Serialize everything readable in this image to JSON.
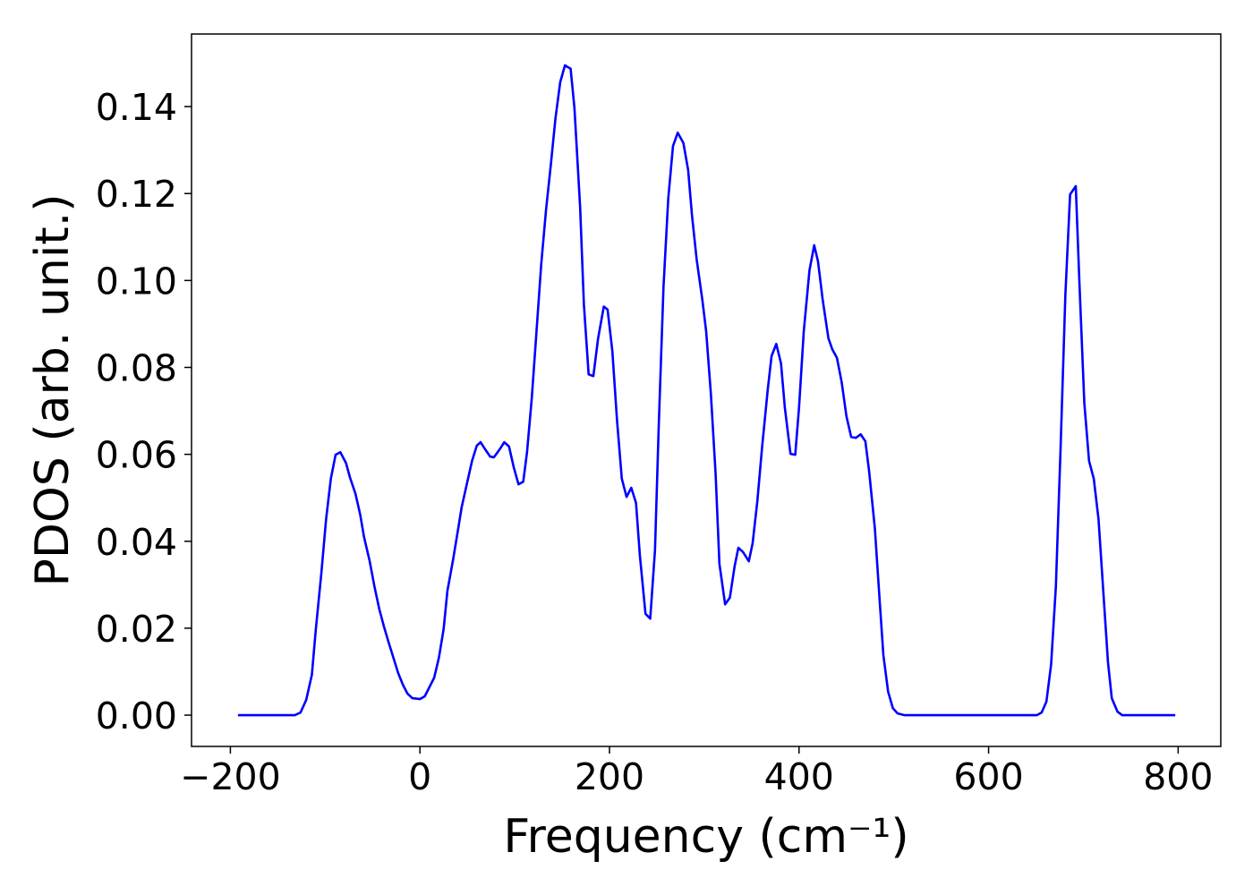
{
  "chart_data": {
    "type": "line",
    "xlabel": "Frequency (cm⁻¹)",
    "ylabel": "PDOS (arb. unit.)",
    "x": [
      -192,
      -132,
      -126,
      -120,
      -114,
      -110,
      -104,
      -99,
      -94,
      -89,
      -84,
      -78,
      -74,
      -68,
      -63,
      -59,
      -53,
      -48,
      -43,
      -38,
      -33,
      -28,
      -23,
      -18,
      -13,
      -8,
      0,
      5,
      9,
      15,
      20,
      25,
      29,
      35,
      40,
      44,
      49,
      55,
      60,
      64,
      69,
      74,
      78,
      84,
      89,
      94,
      99,
      104,
      109,
      113,
      118,
      123,
      128,
      133,
      138,
      143,
      148,
      153,
      159,
      163,
      169,
      173,
      178,
      183,
      188,
      194,
      198,
      203,
      208,
      213,
      218,
      223,
      228,
      232,
      238,
      243,
      248,
      252,
      257,
      262,
      267,
      272,
      278,
      283,
      287,
      292,
      298,
      302,
      307,
      312,
      316,
      322,
      327,
      332,
      336,
      341,
      347,
      351,
      356,
      361,
      367,
      371,
      376,
      381,
      385,
      391,
      396,
      400,
      405,
      411,
      416,
      420,
      425,
      431,
      435,
      440,
      445,
      450,
      455,
      460,
      465,
      470,
      474,
      480,
      485,
      489,
      494,
      499,
      504,
      511,
      651,
      656,
      661,
      666,
      671,
      676,
      681,
      686,
      692,
      696,
      701,
      706,
      711,
      716,
      721,
      726,
      730,
      736,
      741,
      797
    ],
    "series": [
      {
        "color": "#0000ff",
        "values": [
          0,
          0,
          0.0006,
          0.0035,
          0.0093,
          0.0194,
          0.0327,
          0.0451,
          0.0544,
          0.0599,
          0.0605,
          0.058,
          0.0548,
          0.0509,
          0.0461,
          0.041,
          0.0354,
          0.0296,
          0.0245,
          0.0204,
          0.0167,
          0.0132,
          0.0097,
          0.007,
          0.0049,
          0.0039,
          0.0037,
          0.0043,
          0.006,
          0.0086,
          0.0132,
          0.0198,
          0.0286,
          0.0358,
          0.0424,
          0.0478,
          0.0527,
          0.0585,
          0.062,
          0.0628,
          0.0611,
          0.0595,
          0.0593,
          0.0611,
          0.0628,
          0.0618,
          0.057,
          0.0531,
          0.0537,
          0.0605,
          0.0729,
          0.0883,
          0.1038,
          0.1161,
          0.1264,
          0.1373,
          0.1456,
          0.1495,
          0.1487,
          0.1398,
          0.117,
          0.0945,
          0.0784,
          0.078,
          0.0867,
          0.094,
          0.0933,
          0.0838,
          0.0677,
          0.0544,
          0.0502,
          0.0523,
          0.0488,
          0.0369,
          0.0233,
          0.0222,
          0.0379,
          0.0667,
          0.0986,
          0.1188,
          0.1309,
          0.134,
          0.1316,
          0.1254,
          0.1151,
          0.1048,
          0.0955,
          0.0883,
          0.0739,
          0.0554,
          0.0348,
          0.0255,
          0.027,
          0.0342,
          0.0385,
          0.0375,
          0.0354,
          0.0395,
          0.0492,
          0.0616,
          0.0749,
          0.0826,
          0.0854,
          0.0809,
          0.0708,
          0.0601,
          0.0599,
          0.0708,
          0.0883,
          0.1023,
          0.1081,
          0.1044,
          0.0955,
          0.0867,
          0.0842,
          0.0822,
          0.0766,
          0.0688,
          0.064,
          0.0638,
          0.0646,
          0.063,
          0.056,
          0.043,
          0.0266,
          0.0138,
          0.0054,
          0.0016,
          0.0004,
          0,
          0,
          0.0006,
          0.0031,
          0.0117,
          0.0296,
          0.0616,
          0.0966,
          0.1198,
          0.1217,
          0.0986,
          0.0719,
          0.0585,
          0.0544,
          0.0451,
          0.0286,
          0.0121,
          0.0039,
          0.0008,
          0,
          0
        ]
      }
    ],
    "xlim": [
      -241,
      845
    ],
    "xticks": [
      {
        "value": -200,
        "label": "−200"
      },
      0,
      200,
      400,
      600,
      800
    ],
    "ylim": [
      -0.0072,
      0.1567
    ],
    "yticks": [
      {
        "value": 0,
        "label": "0.00"
      },
      {
        "value": 0.02,
        "label": "0.02"
      },
      {
        "value": 0.04,
        "label": "0.04"
      },
      {
        "value": 0.06,
        "label": "0.06"
      },
      {
        "value": 0.08,
        "label": "0.08"
      },
      {
        "value": 0.1,
        "label": "0.10"
      },
      {
        "value": 0.12,
        "label": "0.12"
      },
      {
        "value": 0.14,
        "label": "0.14"
      }
    ],
    "grid": false
  }
}
